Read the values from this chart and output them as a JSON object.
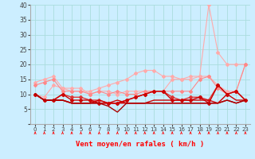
{
  "xlabel": "Vent moyen/en rafales ( km/h )",
  "background_color": "#cceeff",
  "grid_color": "#aadddd",
  "xlim": [
    -0.5,
    23.5
  ],
  "ylim": [
    0,
    40
  ],
  "yticks": [
    0,
    5,
    10,
    15,
    20,
    25,
    30,
    35,
    40
  ],
  "xticks": [
    0,
    1,
    2,
    3,
    4,
    5,
    6,
    7,
    8,
    9,
    10,
    11,
    12,
    13,
    14,
    15,
    16,
    17,
    18,
    19,
    20,
    21,
    22,
    23
  ],
  "series": [
    {
      "x": [
        0,
        1,
        2,
        3,
        4,
        5,
        6,
        7,
        8,
        9,
        10,
        11,
        12,
        13,
        14,
        15,
        16,
        17,
        18,
        19,
        20,
        21,
        22,
        23
      ],
      "y": [
        10,
        9,
        13,
        12,
        11,
        11,
        11,
        12,
        13,
        14,
        15,
        17,
        18,
        18,
        16,
        16,
        15,
        15,
        16,
        40,
        24,
        20,
        20,
        20
      ],
      "color": "#ffaaaa",
      "lw": 0.8,
      "marker": "D",
      "ms": 2.0,
      "zorder": 2
    },
    {
      "x": [
        0,
        1,
        2,
        3,
        4,
        5,
        6,
        7,
        8,
        9,
        10,
        11,
        12,
        13,
        14,
        15,
        16,
        17,
        18,
        19,
        20,
        21,
        22,
        23
      ],
      "y": [
        14,
        15,
        16,
        12,
        12,
        12,
        10,
        11,
        11,
        10,
        11,
        11,
        11,
        11,
        11,
        15,
        15,
        16,
        16,
        16,
        13,
        11,
        11,
        20
      ],
      "color": "#ffaaaa",
      "lw": 0.8,
      "marker": "D",
      "ms": 2.0,
      "zorder": 2
    },
    {
      "x": [
        0,
        1,
        2,
        3,
        4,
        5,
        6,
        7,
        8,
        9,
        10,
        11,
        12,
        13,
        14,
        15,
        16,
        17,
        18,
        19,
        20,
        21,
        22,
        23
      ],
      "y": [
        13,
        14,
        15,
        11,
        11,
        11,
        10,
        11,
        10,
        11,
        10,
        10,
        11,
        11,
        11,
        11,
        11,
        11,
        15,
        16,
        12,
        10,
        11,
        20
      ],
      "color": "#ff8888",
      "lw": 0.8,
      "marker": "D",
      "ms": 2.0,
      "zorder": 3
    },
    {
      "x": [
        0,
        1,
        2,
        3,
        4,
        5,
        6,
        7,
        8,
        9,
        10,
        11,
        12,
        13,
        14,
        15,
        16,
        17,
        18,
        19,
        20,
        21,
        22,
        23
      ],
      "y": [
        10,
        8,
        8,
        10,
        9,
        9,
        8,
        8,
        7,
        7,
        8,
        9,
        10,
        11,
        11,
        9,
        8,
        9,
        9,
        8,
        13,
        10,
        11,
        8
      ],
      "color": "#dd3333",
      "lw": 1.0,
      "marker": "D",
      "ms": 2.0,
      "zorder": 4
    },
    {
      "x": [
        0,
        1,
        2,
        3,
        4,
        5,
        6,
        7,
        8,
        9,
        10,
        11,
        12,
        13,
        14,
        15,
        16,
        17,
        18,
        19,
        20,
        21,
        22,
        23
      ],
      "y": [
        10,
        8,
        8,
        10,
        8,
        8,
        8,
        7,
        7,
        7,
        8,
        9,
        10,
        11,
        11,
        8,
        8,
        8,
        9,
        7,
        13,
        10,
        11,
        8
      ],
      "color": "#cc0000",
      "lw": 1.0,
      "marker": "D",
      "ms": 2.0,
      "zorder": 4
    },
    {
      "x": [
        0,
        1,
        2,
        3,
        4,
        5,
        6,
        7,
        8,
        9,
        10,
        11,
        12,
        13,
        14,
        15,
        16,
        17,
        18,
        19,
        20,
        21,
        22,
        23
      ],
      "y": [
        10,
        8,
        8,
        8,
        7,
        7,
        7,
        7,
        7,
        7,
        7,
        7,
        7,
        8,
        8,
        8,
        8,
        8,
        8,
        8,
        7,
        10,
        8,
        8
      ],
      "color": "#cc0000",
      "lw": 1.0,
      "marker": null,
      "ms": 0,
      "zorder": 4
    },
    {
      "x": [
        0,
        1,
        2,
        3,
        4,
        5,
        6,
        7,
        8,
        9,
        10,
        11,
        12,
        13,
        14,
        15,
        16,
        17,
        18,
        19,
        20,
        21,
        22,
        23
      ],
      "y": [
        10,
        8,
        8,
        8,
        7,
        7,
        7,
        8,
        7,
        8,
        7,
        7,
        7,
        7,
        7,
        7,
        7,
        7,
        7,
        7,
        7,
        8,
        7,
        8
      ],
      "color": "#cc0000",
      "lw": 1.0,
      "marker": null,
      "ms": 0,
      "zorder": 4
    },
    {
      "x": [
        0,
        1,
        2,
        3,
        4,
        5,
        6,
        7,
        8,
        9,
        10,
        11,
        12,
        13,
        14,
        15,
        16,
        17,
        18,
        19,
        20,
        21,
        22,
        23
      ],
      "y": [
        10,
        8,
        8,
        8,
        7,
        7,
        7,
        7,
        6,
        4,
        7,
        7,
        7,
        7,
        7,
        7,
        7,
        7,
        7,
        7,
        7,
        8,
        7,
        8
      ],
      "color": "#aa0000",
      "lw": 1.0,
      "marker": null,
      "ms": 0,
      "zorder": 4
    }
  ]
}
